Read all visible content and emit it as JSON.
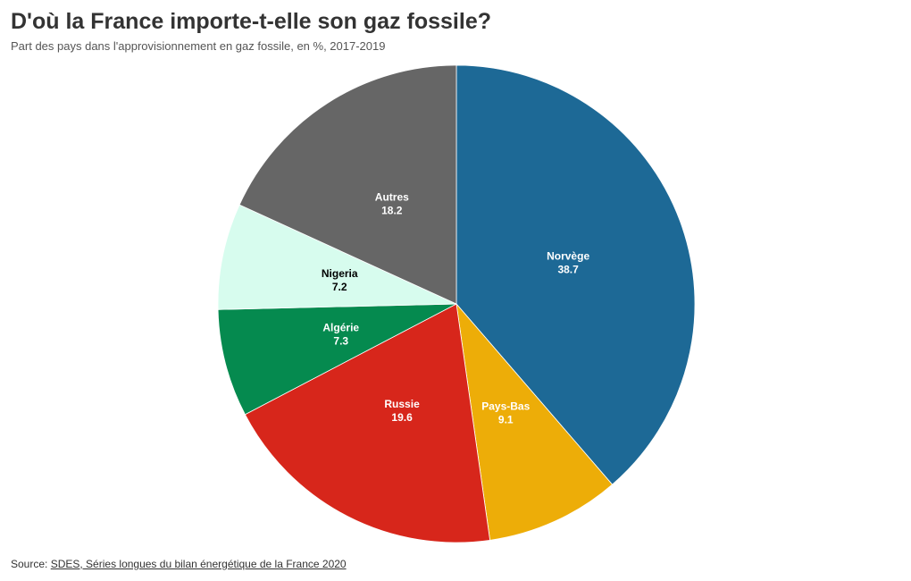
{
  "chart_data": {
    "type": "pie",
    "title": "D'où la France importe-t-elle son gaz fossile?",
    "subtitle": "Part des pays dans l'approvisionnement en gaz fossile, en %, 2017-2019",
    "slices": [
      {
        "name": "Norvège",
        "value": 38.7,
        "value_label": "38.7",
        "color": "#1d6996",
        "text_color": "#ffffff"
      },
      {
        "name": "Pays-Bas",
        "value": 9.1,
        "value_label": "9.1",
        "color": "#edad08",
        "text_color": "#ffffff"
      },
      {
        "name": "Russie",
        "value": 19.6,
        "value_label": "19.6",
        "color": "#d7261b",
        "text_color": "#ffffff"
      },
      {
        "name": "Algérie",
        "value": 7.3,
        "value_label": "7.3",
        "color": "#058a4f",
        "text_color": "#ffffff"
      },
      {
        "name": "Nigeria",
        "value": 7.2,
        "value_label": "7.2",
        "color": "#d7fcee",
        "text_color": "#000000"
      },
      {
        "name": "Autres",
        "value": 18.2,
        "value_label": "18.2",
        "color": "#666666",
        "text_color": "#ffffff"
      }
    ],
    "start": "12 o'clock",
    "direction": "clockwise"
  },
  "source": {
    "prefix": "Source: ",
    "link_text": "SDES, Séries longues du bilan énergétique de la France 2020"
  }
}
